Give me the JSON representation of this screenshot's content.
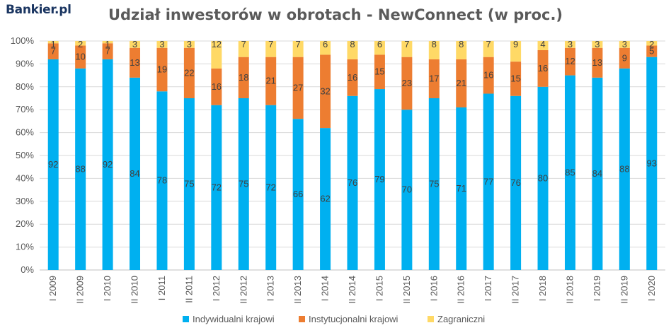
{
  "header": {
    "logo": "Bankier.pl",
    "title": "Udział inwestorów w obrotach - NewConnect (w proc.)"
  },
  "chart_data": {
    "type": "bar",
    "stacked": true,
    "title": "Udział inwestorów w obrotach - NewConnect (w proc.)",
    "categories": [
      "I 2009",
      "II 2009",
      "I 2010",
      "II 2010",
      "I 2011",
      "II 2011",
      "I 2012",
      "II 2012",
      "I 2013",
      "II 2013",
      "I 2014",
      "II 2014",
      "I 2015",
      "II 2015",
      "I 2016",
      "II 2016",
      "I 2017",
      "II 2017",
      "I 2018",
      "II 2018",
      "I 2019",
      "II 2019",
      "I 2020"
    ],
    "series": [
      {
        "name": "Indywidualni krajowi",
        "color": "#00b0f0",
        "values": [
          92,
          88,
          92,
          84,
          78,
          75,
          72,
          75,
          72,
          66,
          62,
          76,
          79,
          70,
          75,
          71,
          77,
          76,
          80,
          85,
          84,
          88,
          93
        ]
      },
      {
        "name": "Instytucjonalni krajowi",
        "color": "#ed7d31",
        "values": [
          7,
          10,
          7,
          13,
          19,
          22,
          16,
          18,
          21,
          27,
          32,
          16,
          15,
          23,
          17,
          21,
          16,
          15,
          16,
          12,
          13,
          9,
          5
        ]
      },
      {
        "name": "Zagraniczni",
        "color": "#ffd966",
        "values": [
          1,
          2,
          1,
          3,
          3,
          3,
          12,
          7,
          7,
          7,
          6,
          8,
          6,
          7,
          8,
          8,
          7,
          9,
          4,
          3,
          3,
          3,
          2
        ]
      }
    ],
    "y_ticks": [
      "0%",
      "10%",
      "20%",
      "30%",
      "40%",
      "50%",
      "60%",
      "70%",
      "80%",
      "90%",
      "100%"
    ],
    "ylim": [
      0,
      100
    ],
    "grid": true,
    "legend_position": "bottom"
  }
}
